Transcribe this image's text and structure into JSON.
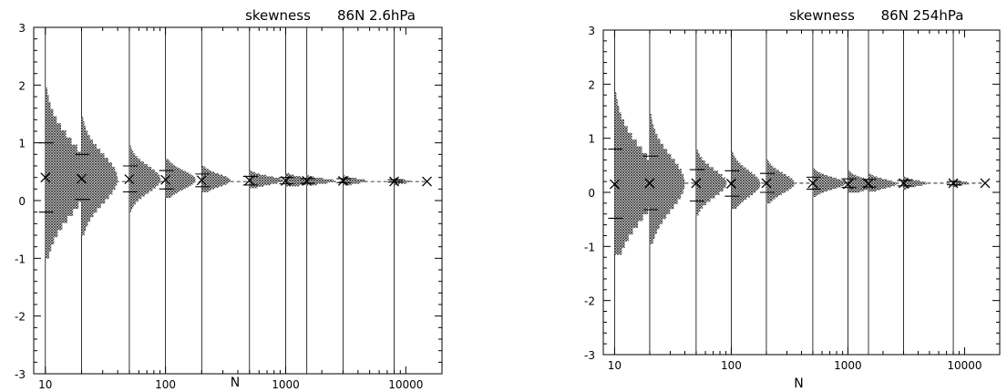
{
  "chart_data": [
    {
      "type": "histogram",
      "title": "skewness",
      "subtitle": "86N 2.6hPa",
      "xlabel": "N",
      "ylabel": "",
      "xscale": "log",
      "xlim": [
        8,
        20000
      ],
      "ylim": [
        -3,
        3
      ],
      "xticks": [
        10,
        100,
        1000,
        10000
      ],
      "xtick_labels": [
        "10",
        "100",
        "1000",
        "10000"
      ],
      "yticks": [
        -3,
        -2,
        -1,
        0,
        1,
        2,
        3
      ],
      "ytick_labels": [
        "-3",
        "-2",
        "-1",
        "0",
        "1",
        "2",
        "3"
      ],
      "reference_value": 0.33,
      "sample_sizes": [
        10,
        20,
        50,
        100,
        200,
        500,
        1000,
        1500,
        3000,
        8000
      ],
      "means": [
        0.4,
        0.38,
        0.37,
        0.36,
        0.35,
        0.35,
        0.34,
        0.34,
        0.34,
        0.33
      ],
      "upper_bars": [
        1.0,
        0.8,
        0.6,
        0.52,
        0.46,
        0.42,
        0.4,
        0.38,
        0.38,
        0.36
      ],
      "lower_bars": [
        -0.2,
        0.02,
        0.15,
        0.2,
        0.24,
        0.27,
        0.29,
        0.3,
        0.31,
        0.32
      ],
      "range_low": [
        -1.0,
        -0.6,
        -0.2,
        0.05,
        0.15,
        0.22,
        0.25,
        0.27,
        0.27,
        0.27
      ],
      "range_high": [
        2.2,
        1.45,
        1.0,
        0.72,
        0.58,
        0.52,
        0.46,
        0.45,
        0.43,
        0.4
      ],
      "hist_width": [
        0.38,
        0.3,
        0.26,
        0.25,
        0.24,
        0.28,
        0.26,
        0.24,
        0.2,
        0.14
      ],
      "final_point": {
        "N": 15000,
        "value": 0.33
      }
    },
    {
      "type": "histogram",
      "title": "skewness",
      "subtitle": "86N 254hPa",
      "xlabel": "N",
      "ylabel": "",
      "xscale": "log",
      "xlim": [
        8,
        20000
      ],
      "ylim": [
        -3,
        3
      ],
      "xticks": [
        10,
        100,
        1000,
        10000
      ],
      "xtick_labels": [
        "10",
        "100",
        "1000",
        "10000"
      ],
      "yticks": [
        -3,
        -2,
        -1,
        0,
        1,
        2,
        3
      ],
      "ytick_labels": [
        "-3",
        "-2",
        "-1",
        "0",
        "1",
        "2",
        "3"
      ],
      "reference_value": 0.17,
      "sample_sizes": [
        10,
        20,
        50,
        100,
        200,
        500,
        1000,
        1500,
        3000,
        8000
      ],
      "means": [
        0.15,
        0.17,
        0.17,
        0.16,
        0.17,
        0.17,
        0.15,
        0.16,
        0.17,
        0.17
      ],
      "upper_bars": [
        0.8,
        0.67,
        0.42,
        0.4,
        0.35,
        0.28,
        0.25,
        0.24,
        0.22,
        0.2
      ],
      "lower_bars": [
        -0.48,
        -0.32,
        -0.16,
        -0.07,
        0.0,
        0.06,
        0.09,
        0.1,
        0.12,
        0.14
      ],
      "range_low": [
        -1.15,
        -0.95,
        -0.55,
        -0.3,
        -0.2,
        -0.08,
        0.0,
        0.02,
        0.05,
        0.1
      ],
      "range_high": [
        2.1,
        1.45,
        1.1,
        0.8,
        0.8,
        0.45,
        0.4,
        0.4,
        0.3,
        0.25
      ],
      "hist_width": [
        0.38,
        0.3,
        0.26,
        0.25,
        0.24,
        0.28,
        0.26,
        0.24,
        0.2,
        0.14
      ],
      "final_point": {
        "N": 15000,
        "value": 0.17
      }
    }
  ]
}
